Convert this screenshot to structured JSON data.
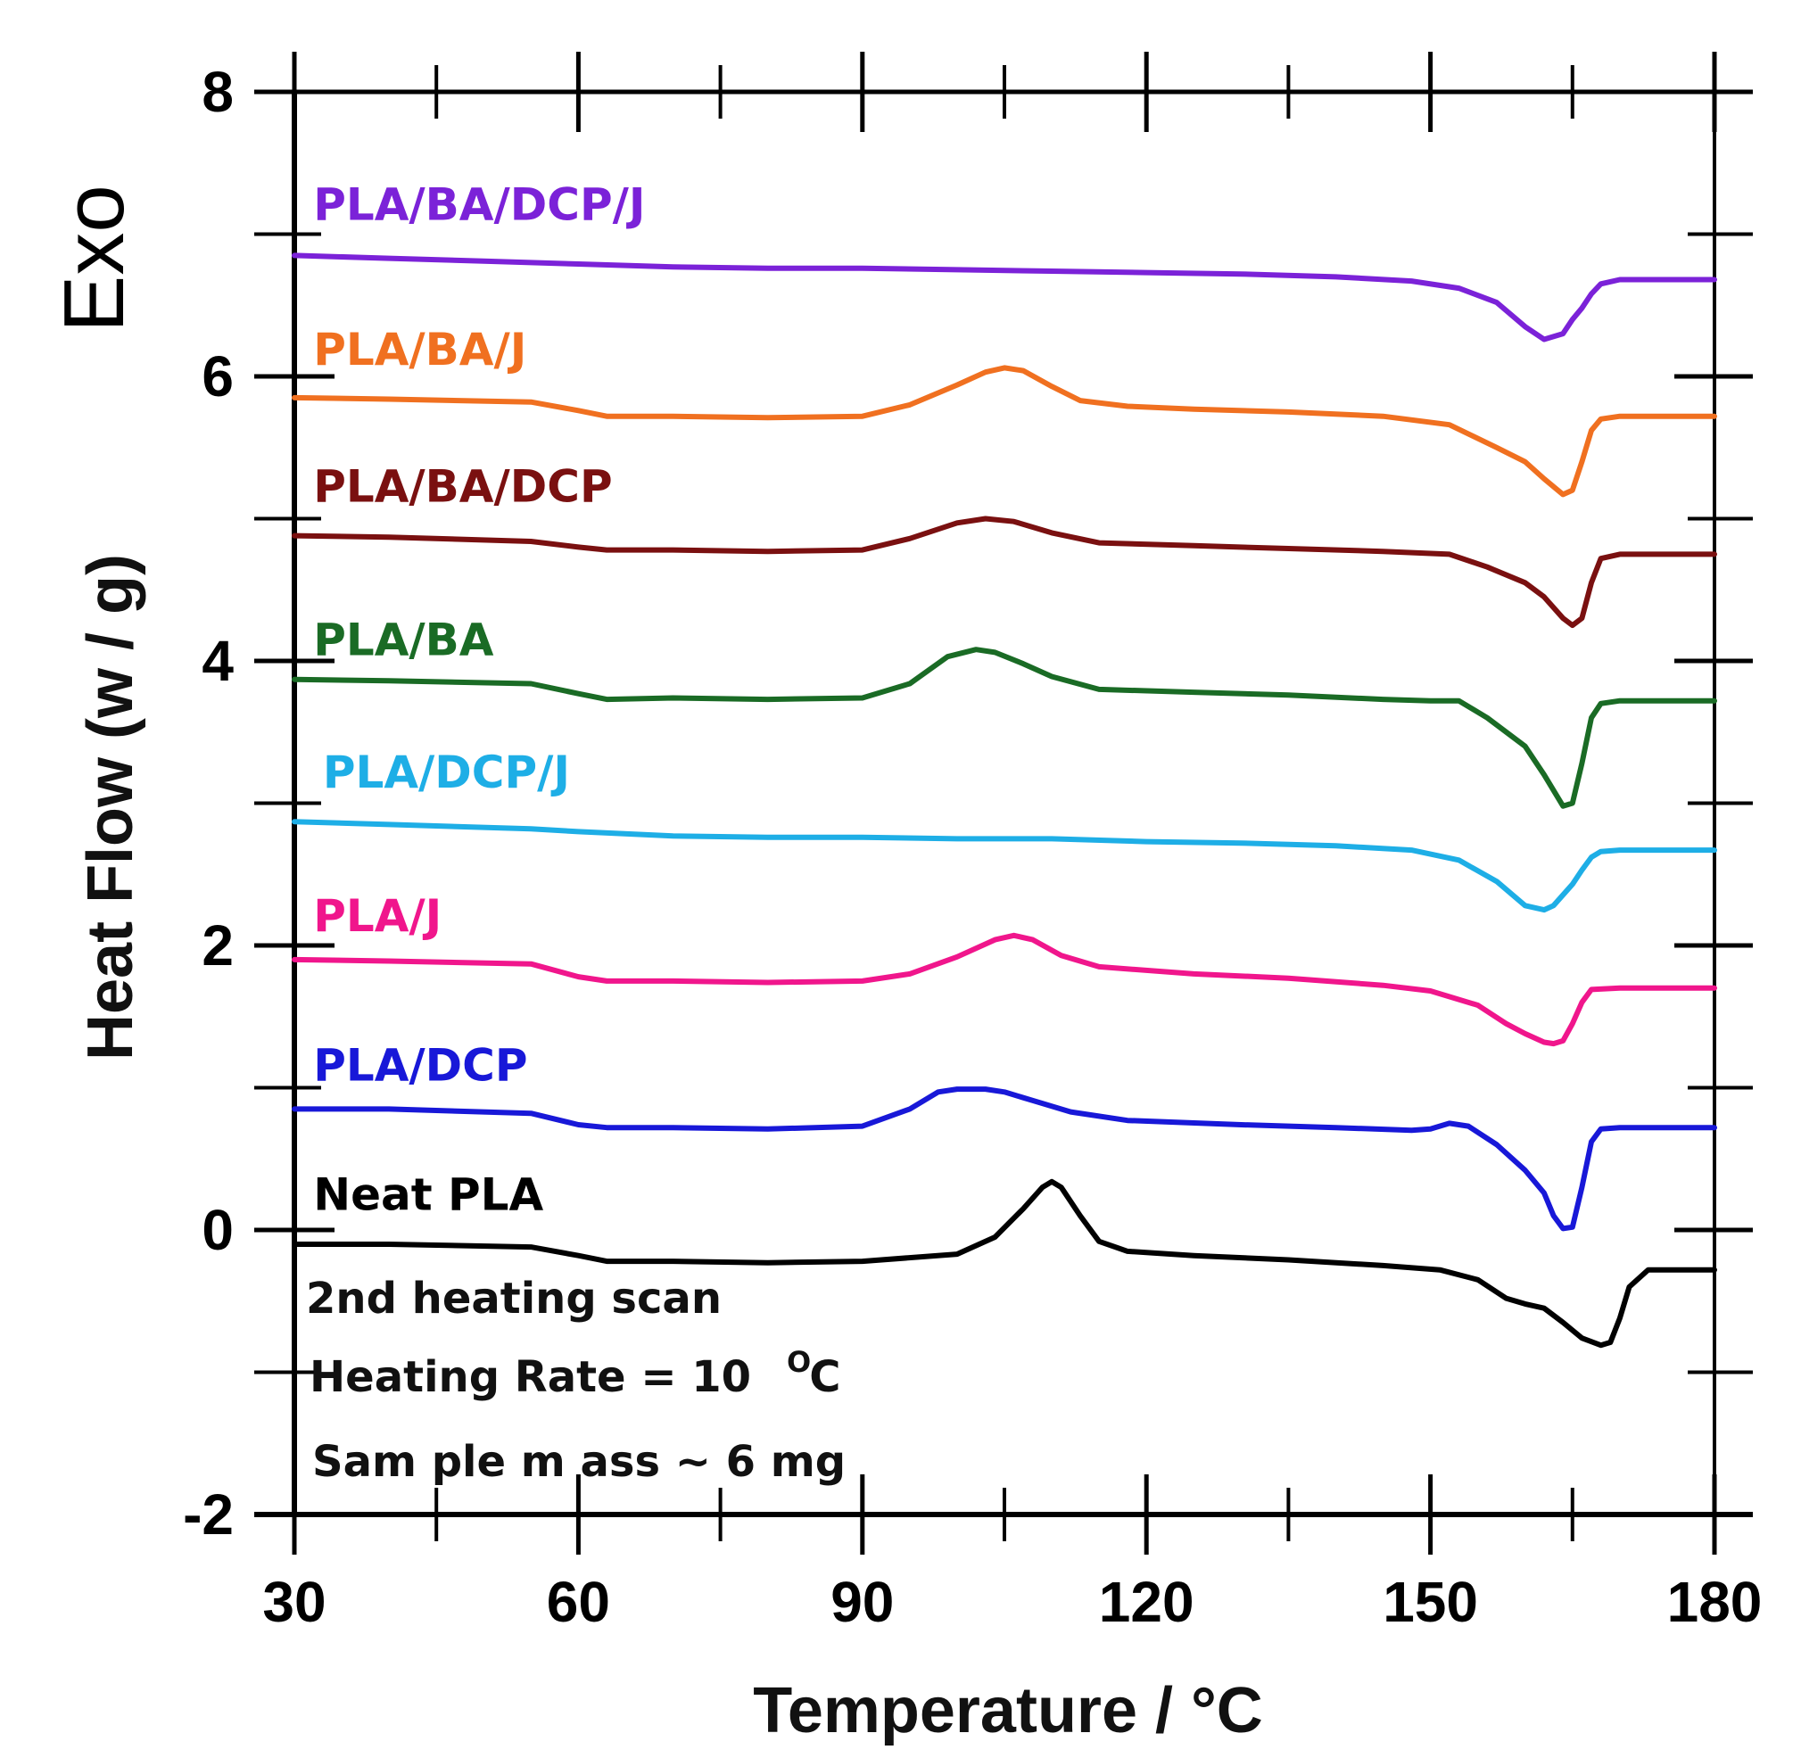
{
  "chart_data": {
    "type": "line",
    "title": "",
    "xlabel": "Temperature / °C",
    "ylabel": "Heat Flow (w / g)",
    "exo_label": "Exo",
    "xlim": [
      30,
      180
    ],
    "ylim": [
      -2,
      8
    ],
    "x_ticks": [
      30,
      60,
      90,
      120,
      150,
      180
    ],
    "y_ticks": [
      -2,
      0,
      2,
      4,
      6,
      8
    ],
    "grid": false,
    "annotations": {
      "line1": "2nd heating scan",
      "line2_main": "Heating Rate = 10",
      "line2_unit": "C",
      "line2_sup": "O",
      "line3": "Sam ple m ass ~ 6 mg"
    },
    "series": [
      {
        "name": "PLA/BA/DCP/J",
        "color": "#7B22D8",
        "label_at": [
          32,
          7.1
        ],
        "points": [
          [
            30,
            6.85
          ],
          [
            40,
            6.83
          ],
          [
            50,
            6.81
          ],
          [
            60,
            6.79
          ],
          [
            70,
            6.77
          ],
          [
            80,
            6.76
          ],
          [
            90,
            6.76
          ],
          [
            100,
            6.75
          ],
          [
            110,
            6.74
          ],
          [
            120,
            6.73
          ],
          [
            130,
            6.72
          ],
          [
            140,
            6.7
          ],
          [
            148,
            6.67
          ],
          [
            153,
            6.62
          ],
          [
            157,
            6.52
          ],
          [
            160,
            6.35
          ],
          [
            162,
            6.26
          ],
          [
            164,
            6.3
          ],
          [
            165,
            6.4
          ],
          [
            166,
            6.48
          ],
          [
            167,
            6.58
          ],
          [
            168,
            6.65
          ],
          [
            170,
            6.68
          ],
          [
            180,
            6.68
          ]
        ]
      },
      {
        "name": "PLA/BA/J",
        "color": "#F07020",
        "label_at": [
          32,
          6.08
        ],
        "points": [
          [
            30,
            5.85
          ],
          [
            40,
            5.84
          ],
          [
            55,
            5.82
          ],
          [
            60,
            5.76
          ],
          [
            63,
            5.72
          ],
          [
            70,
            5.72
          ],
          [
            80,
            5.71
          ],
          [
            90,
            5.72
          ],
          [
            95,
            5.8
          ],
          [
            100,
            5.94
          ],
          [
            103,
            6.03
          ],
          [
            105,
            6.06
          ],
          [
            107,
            6.04
          ],
          [
            110,
            5.93
          ],
          [
            113,
            5.83
          ],
          [
            118,
            5.79
          ],
          [
            125,
            5.77
          ],
          [
            135,
            5.75
          ],
          [
            145,
            5.72
          ],
          [
            152,
            5.66
          ],
          [
            157,
            5.5
          ],
          [
            160,
            5.4
          ],
          [
            162,
            5.28
          ],
          [
            164,
            5.17
          ],
          [
            165,
            5.2
          ],
          [
            166,
            5.4
          ],
          [
            167,
            5.62
          ],
          [
            168,
            5.7
          ],
          [
            170,
            5.72
          ],
          [
            180,
            5.72
          ]
        ]
      },
      {
        "name": "PLA/BA/DCP",
        "color": "#7A1010",
        "label_at": [
          32,
          5.12
        ],
        "points": [
          [
            30,
            4.88
          ],
          [
            40,
            4.87
          ],
          [
            55,
            4.84
          ],
          [
            60,
            4.8
          ],
          [
            63,
            4.78
          ],
          [
            70,
            4.78
          ],
          [
            80,
            4.77
          ],
          [
            90,
            4.78
          ],
          [
            95,
            4.86
          ],
          [
            100,
            4.97
          ],
          [
            103,
            5.0
          ],
          [
            106,
            4.98
          ],
          [
            110,
            4.9
          ],
          [
            115,
            4.83
          ],
          [
            125,
            4.81
          ],
          [
            135,
            4.79
          ],
          [
            145,
            4.77
          ],
          [
            152,
            4.75
          ],
          [
            156,
            4.66
          ],
          [
            160,
            4.55
          ],
          [
            162,
            4.45
          ],
          [
            164,
            4.3
          ],
          [
            165,
            4.25
          ],
          [
            166,
            4.3
          ],
          [
            167,
            4.55
          ],
          [
            168,
            4.72
          ],
          [
            170,
            4.75
          ],
          [
            180,
            4.75
          ]
        ]
      },
      {
        "name": "PLA/BA",
        "color": "#1A6B25",
        "label_at": [
          32,
          4.04
        ],
        "points": [
          [
            30,
            3.87
          ],
          [
            40,
            3.86
          ],
          [
            55,
            3.84
          ],
          [
            60,
            3.77
          ],
          [
            63,
            3.73
          ],
          [
            70,
            3.74
          ],
          [
            80,
            3.73
          ],
          [
            90,
            3.74
          ],
          [
            95,
            3.84
          ],
          [
            99,
            4.03
          ],
          [
            102,
            4.08
          ],
          [
            104,
            4.06
          ],
          [
            107,
            3.98
          ],
          [
            110,
            3.89
          ],
          [
            115,
            3.8
          ],
          [
            125,
            3.78
          ],
          [
            135,
            3.76
          ],
          [
            145,
            3.73
          ],
          [
            150,
            3.72
          ],
          [
            153,
            3.72
          ],
          [
            156,
            3.6
          ],
          [
            160,
            3.4
          ],
          [
            162,
            3.2
          ],
          [
            164,
            2.98
          ],
          [
            165,
            3.0
          ],
          [
            166,
            3.28
          ],
          [
            167,
            3.6
          ],
          [
            168,
            3.7
          ],
          [
            170,
            3.72
          ],
          [
            180,
            3.72
          ]
        ]
      },
      {
        "name": "PLA/DCP/J",
        "color": "#1EAEE6",
        "label_at": [
          33,
          3.11
        ],
        "points": [
          [
            30,
            2.87
          ],
          [
            40,
            2.85
          ],
          [
            55,
            2.82
          ],
          [
            60,
            2.8
          ],
          [
            70,
            2.77
          ],
          [
            80,
            2.76
          ],
          [
            90,
            2.76
          ],
          [
            100,
            2.75
          ],
          [
            110,
            2.75
          ],
          [
            120,
            2.73
          ],
          [
            130,
            2.72
          ],
          [
            140,
            2.7
          ],
          [
            148,
            2.67
          ],
          [
            153,
            2.6
          ],
          [
            157,
            2.45
          ],
          [
            160,
            2.28
          ],
          [
            162,
            2.25
          ],
          [
            163,
            2.28
          ],
          [
            165,
            2.43
          ],
          [
            166,
            2.53
          ],
          [
            167,
            2.62
          ],
          [
            168,
            2.66
          ],
          [
            170,
            2.67
          ],
          [
            180,
            2.67
          ]
        ]
      },
      {
        "name": "PLA/J",
        "color": "#F0168C",
        "label_at": [
          32,
          2.1
        ],
        "points": [
          [
            30,
            1.9
          ],
          [
            40,
            1.89
          ],
          [
            55,
            1.87
          ],
          [
            60,
            1.78
          ],
          [
            63,
            1.75
          ],
          [
            70,
            1.75
          ],
          [
            80,
            1.74
          ],
          [
            90,
            1.75
          ],
          [
            95,
            1.8
          ],
          [
            100,
            1.92
          ],
          [
            104,
            2.04
          ],
          [
            106,
            2.07
          ],
          [
            108,
            2.04
          ],
          [
            111,
            1.93
          ],
          [
            115,
            1.85
          ],
          [
            125,
            1.8
          ],
          [
            135,
            1.77
          ],
          [
            145,
            1.72
          ],
          [
            150,
            1.68
          ],
          [
            155,
            1.58
          ],
          [
            158,
            1.45
          ],
          [
            160,
            1.38
          ],
          [
            162,
            1.32
          ],
          [
            163,
            1.31
          ],
          [
            164,
            1.33
          ],
          [
            165,
            1.45
          ],
          [
            166,
            1.6
          ],
          [
            167,
            1.69
          ],
          [
            170,
            1.7
          ],
          [
            180,
            1.7
          ]
        ]
      },
      {
        "name": "PLA/DCP",
        "color": "#1818D8",
        "label_at": [
          32,
          1.05
        ],
        "points": [
          [
            30,
            0.85
          ],
          [
            40,
            0.85
          ],
          [
            55,
            0.82
          ],
          [
            60,
            0.74
          ],
          [
            63,
            0.72
          ],
          [
            70,
            0.72
          ],
          [
            80,
            0.71
          ],
          [
            90,
            0.73
          ],
          [
            95,
            0.85
          ],
          [
            98,
            0.97
          ],
          [
            100,
            0.99
          ],
          [
            103,
            0.99
          ],
          [
            105,
            0.97
          ],
          [
            108,
            0.91
          ],
          [
            112,
            0.83
          ],
          [
            118,
            0.77
          ],
          [
            130,
            0.74
          ],
          [
            140,
            0.72
          ],
          [
            148,
            0.7
          ],
          [
            150,
            0.71
          ],
          [
            152,
            0.75
          ],
          [
            154,
            0.73
          ],
          [
            157,
            0.6
          ],
          [
            160,
            0.42
          ],
          [
            162,
            0.26
          ],
          [
            163,
            0.1
          ],
          [
            164,
            0.01
          ],
          [
            165,
            0.02
          ],
          [
            166,
            0.3
          ],
          [
            167,
            0.62
          ],
          [
            168,
            0.71
          ],
          [
            170,
            0.72
          ],
          [
            180,
            0.72
          ]
        ]
      },
      {
        "name": "Neat PLA",
        "color": "#000000",
        "label_at": [
          32,
          0.14
        ],
        "points": [
          [
            30,
            -0.1
          ],
          [
            40,
            -0.1
          ],
          [
            55,
            -0.12
          ],
          [
            60,
            -0.18
          ],
          [
            63,
            -0.22
          ],
          [
            70,
            -0.22
          ],
          [
            80,
            -0.23
          ],
          [
            90,
            -0.22
          ],
          [
            100,
            -0.17
          ],
          [
            104,
            -0.05
          ],
          [
            107,
            0.15
          ],
          [
            109,
            0.3
          ],
          [
            110,
            0.34
          ],
          [
            111,
            0.3
          ],
          [
            113,
            0.1
          ],
          [
            115,
            -0.08
          ],
          [
            118,
            -0.15
          ],
          [
            125,
            -0.18
          ],
          [
            135,
            -0.21
          ],
          [
            145,
            -0.25
          ],
          [
            151,
            -0.28
          ],
          [
            155,
            -0.35
          ],
          [
            158,
            -0.48
          ],
          [
            160,
            -0.52
          ],
          [
            162,
            -0.55
          ],
          [
            164,
            -0.65
          ],
          [
            166,
            -0.76
          ],
          [
            168,
            -0.81
          ],
          [
            169,
            -0.79
          ],
          [
            170,
            -0.62
          ],
          [
            171,
            -0.4
          ],
          [
            173,
            -0.28
          ],
          [
            180,
            -0.28
          ]
        ]
      }
    ]
  }
}
